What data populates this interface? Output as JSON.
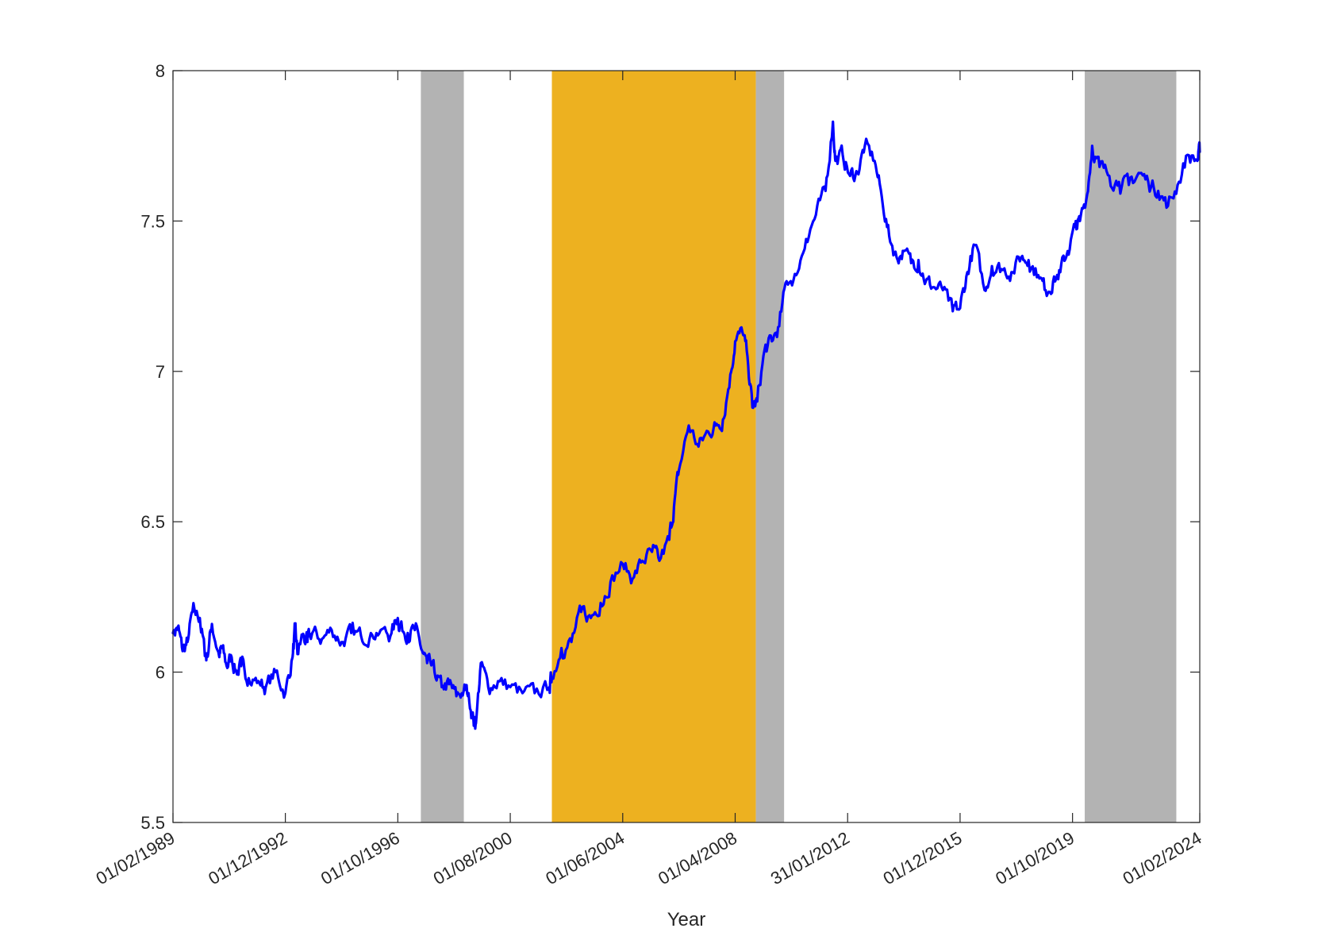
{
  "chart_data": {
    "type": "line",
    "title": "",
    "xlabel": "Year",
    "ylabel": "",
    "grid": false,
    "legend": "none",
    "xlim": [
      "1989-02-01",
      "2024-02-01"
    ],
    "ylim": [
      5.5,
      8
    ],
    "x_ticks": [
      {
        "date": "1989-02-01",
        "label": "01/02/1989"
      },
      {
        "date": "1992-12-01",
        "label": "01/12/1992"
      },
      {
        "date": "1996-10-01",
        "label": "01/10/1996"
      },
      {
        "date": "2000-08-01",
        "label": "01/08/2000"
      },
      {
        "date": "2004-06-01",
        "label": "01/06/2004"
      },
      {
        "date": "2008-04-01",
        "label": "01/04/2008"
      },
      {
        "date": "2012-01-31",
        "label": "31/01/2012"
      },
      {
        "date": "2015-12-01",
        "label": "01/12/2015"
      },
      {
        "date": "2019-10-01",
        "label": "01/10/2019"
      },
      {
        "date": "2024-02-01",
        "label": "01/02/2024"
      }
    ],
    "y_ticks": [
      {
        "value": 5.5,
        "label": "5.5"
      },
      {
        "value": 6,
        "label": "6"
      },
      {
        "value": 6.5,
        "label": "6.5"
      },
      {
        "value": 7,
        "label": "7"
      },
      {
        "value": 7.5,
        "label": "7.5"
      },
      {
        "value": 8,
        "label": "8"
      }
    ],
    "shaded_regions": [
      {
        "start": "1997-07-15",
        "end": "1999-01-01",
        "color": "#b3b3b3"
      },
      {
        "start": "2002-01-01",
        "end": "2008-12-15",
        "color": "#edb120"
      },
      {
        "start": "2008-12-15",
        "end": "2009-12-01",
        "color": "#b3b3b3"
      },
      {
        "start": "2020-03-01",
        "end": "2023-04-15",
        "color": "#b3b3b3"
      }
    ],
    "series": [
      {
        "color": "#0000ff",
        "x": [
          "1989-02-01",
          "1989-04-01",
          "1989-06-01",
          "1989-08-01",
          "1989-10-01",
          "1990-01-01",
          "1990-03-01",
          "1990-04-01",
          "1990-06-01",
          "1990-09-01",
          "1990-10-01",
          "1990-12-01",
          "1991-02-01",
          "1991-04-01",
          "1991-06-01",
          "1991-09-01",
          "1992-01-01",
          "1992-04-01",
          "1992-08-01",
          "1992-12-01",
          "1993-03-01",
          "1993-04-01",
          "1993-05-01",
          "1993-07-01",
          "1993-09-01",
          "1993-11-01",
          "1994-03-01",
          "1994-07-01",
          "1994-11-01",
          "1995-03-01",
          "1995-07-01",
          "1995-11-01",
          "1996-03-01",
          "1996-07-01",
          "1996-10-01",
          "1996-11-01",
          "1997-02-01",
          "1997-05-01",
          "1997-08-01",
          "1997-10-01",
          "1998-01-01",
          "1998-04-01",
          "1998-07-01",
          "1998-10-01",
          "1999-01-01",
          "1999-03-01",
          "1999-05-01",
          "1999-06-01",
          "1999-08-01",
          "1999-11-01",
          "2000-03-01",
          "2000-08-01",
          "2001-01-01",
          "2001-06-01",
          "2001-12-01",
          "2002-01-01",
          "2002-05-01",
          "2002-09-01",
          "2003-01-01",
          "2003-05-01",
          "2003-09-01",
          "2004-01-01",
          "2004-06-01",
          "2004-10-01",
          "2005-02-01",
          "2005-06-01",
          "2005-09-01",
          "2006-01-01",
          "2006-03-01",
          "2006-05-01",
          "2006-09-01",
          "2007-01-01",
          "2007-05-01",
          "2007-08-01",
          "2007-11-01",
          "2008-02-01",
          "2008-04-01",
          "2008-07-01",
          "2008-09-01",
          "2008-11-01",
          "2009-01-01",
          "2009-04-01",
          "2009-07-01",
          "2009-10-01",
          "2010-01-01",
          "2010-05-01",
          "2010-09-01",
          "2011-01-01",
          "2011-05-01",
          "2011-08-01",
          "2011-09-01",
          "2011-12-01",
          "2012-03-01",
          "2012-06-01",
          "2012-09-01",
          "2013-01-01",
          "2013-04-01",
          "2013-07-01",
          "2013-10-01",
          "2014-01-01",
          "2014-04-01",
          "2014-07-01",
          "2014-10-01",
          "2015-01-01",
          "2015-05-01",
          "2015-09-01",
          "2015-12-01",
          "2016-03-01",
          "2016-06-01",
          "2016-10-01",
          "2017-01-01",
          "2017-05-01",
          "2017-09-01",
          "2018-01-01",
          "2018-04-01",
          "2018-08-01",
          "2018-11-01",
          "2019-02-01",
          "2019-05-01",
          "2019-08-01",
          "2019-11-01",
          "2020-01-01",
          "2020-04-01",
          "2020-06-01",
          "2020-09-01",
          "2021-01-01",
          "2021-05-01",
          "2021-09-01",
          "2022-01-01",
          "2022-05-01",
          "2022-09-01",
          "2023-01-01",
          "2023-05-01",
          "2023-09-01",
          "2024-01-01",
          "2024-02-01"
        ],
        "y": [
          6.13,
          6.15,
          6.07,
          6.1,
          6.2,
          6.18,
          6.07,
          6.05,
          6.16,
          6.05,
          6.08,
          6.02,
          6.05,
          6.0,
          6.02,
          5.98,
          5.97,
          5.95,
          6.0,
          5.93,
          6.05,
          6.14,
          6.06,
          6.12,
          6.1,
          6.13,
          6.11,
          6.14,
          6.1,
          6.13,
          6.12,
          6.13,
          6.14,
          6.12,
          6.18,
          6.15,
          6.13,
          6.14,
          6.07,
          6.03,
          6.0,
          5.95,
          5.96,
          5.92,
          5.94,
          5.93,
          5.84,
          5.83,
          6.03,
          5.95,
          5.97,
          5.95,
          5.93,
          5.93,
          5.95,
          5.98,
          6.08,
          6.1,
          6.2,
          6.18,
          6.23,
          6.3,
          6.36,
          6.31,
          6.37,
          6.4,
          6.37,
          6.44,
          6.55,
          6.67,
          6.82,
          6.75,
          6.8,
          6.82,
          6.84,
          6.99,
          7.1,
          7.13,
          7.05,
          6.88,
          6.9,
          7.07,
          7.1,
          7.15,
          7.3,
          7.32,
          7.44,
          7.52,
          7.6,
          7.83,
          7.7,
          7.72,
          7.65,
          7.66,
          7.75,
          7.7,
          7.58,
          7.45,
          7.38,
          7.4,
          7.36,
          7.37,
          7.3,
          7.28,
          7.27,
          7.2,
          7.21,
          7.33,
          7.42,
          7.27,
          7.35,
          7.34,
          7.33,
          7.38,
          7.37,
          7.32,
          7.27,
          7.3,
          7.33,
          7.4,
          7.48,
          7.5,
          7.59,
          7.75,
          7.68,
          7.65,
          7.63,
          7.62,
          7.66,
          7.63,
          7.6,
          7.55,
          7.62,
          7.72,
          7.7,
          7.73
        ]
      }
    ]
  }
}
